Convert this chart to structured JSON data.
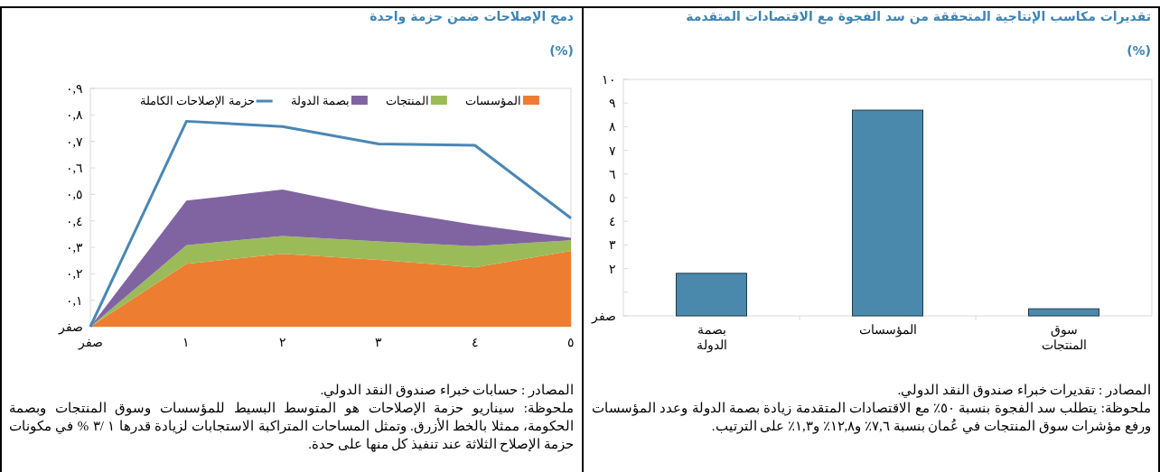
{
  "chart_data": [
    {
      "type": "bar",
      "title": "تقديرات مكاسب الإنتاجية المتحققة من سد الفجوة مع الاقتصادات المتقدمة",
      "subtitle": "(%)",
      "categories": [
        "بصمة الدولة",
        "المؤسسات",
        "سوق المنتجات"
      ],
      "values": [
        1.8,
        8.7,
        0.3
      ],
      "color": "#4a89ab",
      "ylim": [
        0,
        10
      ],
      "yticks": [
        {
          "value": 0,
          "label": "صفر"
        },
        {
          "value": 1,
          "label": null
        },
        {
          "value": 2,
          "label": "٢"
        },
        {
          "value": 3,
          "label": "٣"
        },
        {
          "value": 4,
          "label": "٤"
        },
        {
          "value": 5,
          "label": "٥"
        },
        {
          "value": 6,
          "label": "٦"
        },
        {
          "value": 7,
          "label": "٧"
        },
        {
          "value": 8,
          "label": "٨"
        },
        {
          "value": 9,
          "label": "٩"
        },
        {
          "value": 10,
          "label": "١٠"
        }
      ],
      "annotations": [
        "المصادر : تقديرات خبراء صندوق النقد الدولي.",
        "ملحوظة: يتطلب سد الفجوة بنسبة ٥٠٪ مع الاقتصادات المتقدمة زيادة بصمة الدولة وعدد المؤسسات ورفع مؤشرات سوق المنتجات في عُمان بنسبة ٧,٦٪ و١٢,٨٪ و١,٣٪ على الترتيب."
      ]
    },
    {
      "type": "area",
      "stacked": true,
      "title": "دمج الإصلاحات ضمن حزمة واحدة",
      "subtitle": "(%)",
      "x": [
        0,
        1,
        2,
        3,
        4,
        5
      ],
      "xlim": [
        0,
        5
      ],
      "xticks": [
        {
          "value": 0,
          "label": "صفر"
        },
        {
          "value": 1,
          "label": "١"
        },
        {
          "value": 2,
          "label": "٢"
        },
        {
          "value": 3,
          "label": "٣"
        },
        {
          "value": 4,
          "label": "٤"
        },
        {
          "value": 5,
          "label": "٥"
        }
      ],
      "ylim": [
        0,
        0.9
      ],
      "yticks": [
        {
          "value": 0,
          "label": "صفر"
        },
        {
          "value": 0.1,
          "label": "٠,١"
        },
        {
          "value": 0.2,
          "label": "٠,٢"
        },
        {
          "value": 0.3,
          "label": "٠,٣"
        },
        {
          "value": 0.4,
          "label": "٠,٤"
        },
        {
          "value": 0.5,
          "label": "٠,٥"
        },
        {
          "value": 0.6,
          "label": "٠,٦"
        },
        {
          "value": 0.7,
          "label": "٠,٧"
        },
        {
          "value": 0.8,
          "label": "٠,٨"
        },
        {
          "value": 0.9,
          "label": "٠,٩"
        }
      ],
      "legend": "top",
      "series": [
        {
          "name": "المؤسسات",
          "color": "#ed7d31",
          "values": [
            0,
            0.238,
            0.275,
            0.252,
            0.224,
            0.286
          ]
        },
        {
          "name": "المنتجات",
          "color": "#9bbb59",
          "values": [
            0,
            0.07,
            0.068,
            0.07,
            0.08,
            0.04
          ]
        },
        {
          "name": "بصمة الدولة",
          "color": "#8064a2",
          "values": [
            0,
            0.168,
            0.175,
            0.122,
            0.081,
            0.01
          ]
        },
        {
          "name": "حزمة الإصلاحات الكاملة",
          "type": "line",
          "color": "#4a87b5",
          "values": [
            0,
            0.776,
            0.756,
            0.69,
            0.685,
            0.41
          ]
        }
      ],
      "annotations": [
        "المصادر : حسابات خبراء صندوق النقد الدولي.",
        "ملحوظة: سيناريو حزمة الإصلاحات هو المتوسط البسيط للمؤسسات وسوق المنتجات وبصمة الحكومة، ممثلا بالخط الأزرق. وتمثل المساحات المتراكبة الاستجابات لزيادة قدرها ١ /٣ % في مكونات حزمة الإصلاح الثلاثة عند تنفيذ كل منها على حدة."
      ]
    }
  ]
}
